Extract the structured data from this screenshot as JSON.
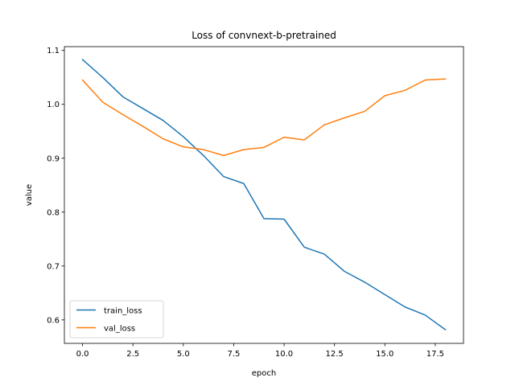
{
  "chart_data": {
    "type": "line",
    "title": "Loss of convnext-b-pretrained",
    "xlabel": "epoch",
    "ylabel": "value",
    "xlim": [
      -0.9,
      18.9
    ],
    "ylim": [
      0.5565,
      1.107
    ],
    "xticks": [
      0.0,
      2.5,
      5.0,
      7.5,
      10.0,
      12.5,
      15.0,
      17.5
    ],
    "xtick_labels": [
      "0.0",
      "2.5",
      "5.0",
      "7.5",
      "10.0",
      "12.5",
      "15.0",
      "17.5"
    ],
    "yticks": [
      0.6,
      0.7,
      0.8,
      0.9,
      1.0,
      1.1
    ],
    "ytick_labels": [
      "0.6",
      "0.7",
      "0.8",
      "0.9",
      "1.0",
      "1.1"
    ],
    "grid": false,
    "legend_position": "lower-left",
    "x": [
      0,
      1,
      2,
      3,
      4,
      5,
      6,
      7,
      8,
      9,
      10,
      11,
      12,
      13,
      14,
      15,
      16,
      17,
      18
    ],
    "series": [
      {
        "name": "train_loss",
        "color": "#1f77b4",
        "values": [
          1.083,
          1.05,
          1.014,
          0.992,
          0.97,
          0.94,
          0.905,
          0.866,
          0.853,
          0.788,
          0.787,
          0.735,
          0.722,
          0.69,
          0.67,
          0.647,
          0.624,
          0.609,
          0.582
        ]
      },
      {
        "name": "val_loss",
        "color": "#ff7f0e",
        "values": [
          1.045,
          1.004,
          0.981,
          0.959,
          0.936,
          0.921,
          0.916,
          0.905,
          0.916,
          0.92,
          0.939,
          0.934,
          0.962,
          0.975,
          0.987,
          1.016,
          1.026,
          1.045,
          1.047
        ]
      }
    ]
  }
}
